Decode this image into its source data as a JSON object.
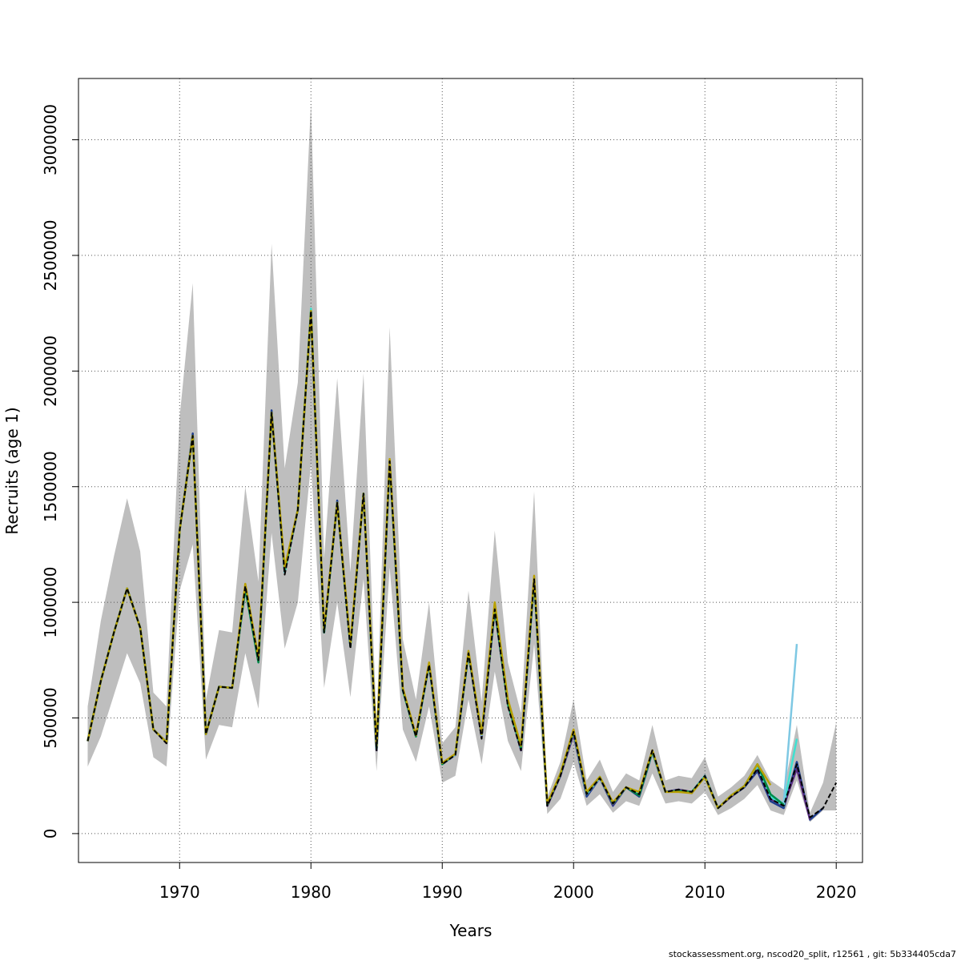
{
  "chart_data": {
    "type": "line",
    "xlabel": "Years",
    "ylabel": "Recruits (age 1)",
    "xlim": [
      1962.3,
      2022.0
    ],
    "ylim": [
      -125000,
      3265000
    ],
    "x_ticks": [
      1970,
      1980,
      1990,
      2000,
      2010,
      2020
    ],
    "y_ticks": [
      0,
      500000,
      1000000,
      1500000,
      2000000,
      2500000,
      3000000
    ],
    "grid": true,
    "colors": {
      "band": "#bebebe",
      "base": "#000000",
      "retro": [
        "#1f3e8e",
        "#5a2d82",
        "#40e0d0",
        "#7ec8e3",
        "#008b45",
        "#b8a000",
        "#2aa198"
      ]
    },
    "band": {
      "x": [
        1963,
        1964,
        1965,
        1966,
        1967,
        1968,
        1969,
        1970,
        1971,
        1972,
        1973,
        1974,
        1975,
        1976,
        1977,
        1978,
        1979,
        1980,
        1981,
        1982,
        1983,
        1984,
        1985,
        1986,
        1987,
        1988,
        1989,
        1990,
        1991,
        1992,
        1993,
        1994,
        1995,
        1996,
        1997,
        1998,
        1999,
        2000,
        2001,
        2002,
        2003,
        2004,
        2005,
        2006,
        2007,
        2008,
        2009,
        2010,
        2011,
        2012,
        2013,
        2014,
        2015,
        2016,
        2017,
        2018,
        2019,
        2020
      ],
      "lower": [
        290000,
        420000,
        600000,
        780000,
        650000,
        330000,
        290000,
        1050000,
        1250000,
        320000,
        470000,
        460000,
        780000,
        540000,
        1300000,
        800000,
        1000000,
        1600000,
        630000,
        1000000,
        590000,
        1100000,
        270000,
        1150000,
        450000,
        310000,
        550000,
        220000,
        250000,
        580000,
        300000,
        700000,
        400000,
        270000,
        820000,
        85000,
        150000,
        310000,
        120000,
        170000,
        90000,
        140000,
        120000,
        260000,
        130000,
        140000,
        130000,
        180000,
        80000,
        110000,
        150000,
        210000,
        100000,
        80000,
        230000,
        50000,
        100000,
        100000
      ],
      "upper": [
        550000,
        920000,
        1200000,
        1450000,
        1220000,
        610000,
        550000,
        1800000,
        2380000,
        580000,
        880000,
        870000,
        1500000,
        1090000,
        2550000,
        1580000,
        1950000,
        3160000,
        1190000,
        1970000,
        1130000,
        1990000,
        470000,
        2190000,
        840000,
        580000,
        1000000,
        390000,
        460000,
        1050000,
        570000,
        1310000,
        740000,
        520000,
        1480000,
        160000,
        310000,
        580000,
        230000,
        320000,
        180000,
        260000,
        230000,
        470000,
        230000,
        250000,
        240000,
        330000,
        160000,
        200000,
        250000,
        340000,
        230000,
        190000,
        470000,
        90000,
        220000,
        480000
      ]
    },
    "series": [
      {
        "role": "base",
        "x": [
          1963,
          1964,
          1965,
          1966,
          1967,
          1968,
          1969,
          1970,
          1971,
          1972,
          1973,
          1974,
          1975,
          1976,
          1977,
          1978,
          1979,
          1980,
          1981,
          1982,
          1983,
          1984,
          1985,
          1986,
          1987,
          1988,
          1989,
          1990,
          1991,
          1992,
          1993,
          1994,
          1995,
          1996,
          1997,
          1998,
          1999,
          2000,
          2001,
          2002,
          2003,
          2004,
          2005,
          2006,
          2007,
          2008,
          2009,
          2010,
          2011,
          2012,
          2013,
          2014,
          2015,
          2016,
          2017,
          2018,
          2019,
          2020
        ],
        "values": [
          400000,
          660000,
          870000,
          1060000,
          890000,
          450000,
          390000,
          1310000,
          1720000,
          430000,
          635000,
          630000,
          1070000,
          750000,
          1820000,
          1120000,
          1400000,
          2260000,
          870000,
          1430000,
          800000,
          1470000,
          360000,
          1610000,
          620000,
          420000,
          730000,
          300000,
          340000,
          780000,
          410000,
          970000,
          550000,
          360000,
          1100000,
          120000,
          250000,
          440000,
          170000,
          240000,
          130000,
          200000,
          170000,
          360000,
          180000,
          190000,
          180000,
          250000,
          110000,
          160000,
          200000,
          280000,
          150000,
          120000,
          300000,
          70000,
          110000,
          220000
        ]
      },
      {
        "role": "retro",
        "x": [
          1963,
          1964,
          1965,
          1966,
          1967,
          1968,
          1969,
          1970,
          1971,
          1972,
          1973,
          1974,
          1975,
          1976,
          1977,
          1978,
          1979,
          1980,
          1981,
          1982,
          1983,
          1984,
          1985,
          1986,
          1987,
          1988,
          1989,
          1990,
          1991,
          1992,
          1993,
          1994,
          1995,
          1996,
          1997,
          1998,
          1999,
          2000,
          2001,
          2002,
          2003,
          2004,
          2005,
          2006,
          2007,
          2008,
          2009,
          2010,
          2011,
          2012,
          2013,
          2014,
          2015,
          2016,
          2017,
          2018,
          2019
        ],
        "values": [
          400000,
          660000,
          870000,
          1060000,
          890000,
          450000,
          395000,
          1310000,
          1730000,
          430000,
          635000,
          630000,
          1060000,
          740000,
          1830000,
          1130000,
          1400000,
          2250000,
          870000,
          1440000,
          810000,
          1470000,
          360000,
          1610000,
          620000,
          420000,
          730000,
          300000,
          340000,
          780000,
          420000,
          970000,
          560000,
          360000,
          1100000,
          120000,
          250000,
          430000,
          160000,
          240000,
          120000,
          200000,
          160000,
          350000,
          180000,
          190000,
          175000,
          250000,
          110000,
          160000,
          200000,
          270000,
          140000,
          110000,
          310000,
          60000,
          110000
        ]
      },
      {
        "role": "retro",
        "x": [
          1963,
          1964,
          1965,
          1966,
          1967,
          1968,
          1969,
          1970,
          1971,
          1972,
          1973,
          1974,
          1975,
          1976,
          1977,
          1978,
          1979,
          1980,
          1981,
          1982,
          1983,
          1984,
          1985,
          1986,
          1987,
          1988,
          1989,
          1990,
          1991,
          1992,
          1993,
          1994,
          1995,
          1996,
          1997,
          1998,
          1999,
          2000,
          2001,
          2002,
          2003,
          2004,
          2005,
          2006,
          2007,
          2008,
          2009,
          2010,
          2011,
          2012,
          2013,
          2014,
          2015,
          2016,
          2017,
          2018
        ],
        "values": [
          400000,
          660000,
          870000,
          1060000,
          890000,
          450000,
          395000,
          1310000,
          1720000,
          430000,
          635000,
          630000,
          1060000,
          750000,
          1820000,
          1130000,
          1400000,
          2260000,
          870000,
          1430000,
          810000,
          1470000,
          360000,
          1610000,
          620000,
          420000,
          730000,
          300000,
          340000,
          780000,
          420000,
          970000,
          560000,
          360000,
          1100000,
          120000,
          250000,
          430000,
          170000,
          240000,
          125000,
          200000,
          170000,
          350000,
          180000,
          190000,
          180000,
          250000,
          110000,
          160000,
          205000,
          280000,
          150000,
          120000,
          280000,
          60000
        ]
      },
      {
        "role": "retro",
        "x": [
          1963,
          1964,
          1965,
          1966,
          1967,
          1968,
          1969,
          1970,
          1971,
          1972,
          1973,
          1974,
          1975,
          1976,
          1977,
          1978,
          1979,
          1980,
          1981,
          1982,
          1983,
          1984,
          1985,
          1986,
          1987,
          1988,
          1989,
          1990,
          1991,
          1992,
          1993,
          1994,
          1995,
          1996,
          1997,
          1998,
          1999,
          2000,
          2001,
          2002,
          2003,
          2004,
          2005,
          2006,
          2007,
          2008,
          2009,
          2010,
          2011,
          2012,
          2013,
          2014,
          2015,
          2016,
          2017
        ],
        "values": [
          400000,
          660000,
          870000,
          1060000,
          890000,
          450000,
          395000,
          1310000,
          1720000,
          430000,
          635000,
          630000,
          1070000,
          750000,
          1820000,
          1130000,
          1400000,
          2270000,
          870000,
          1430000,
          810000,
          1470000,
          370000,
          1610000,
          620000,
          420000,
          730000,
          300000,
          345000,
          780000,
          430000,
          980000,
          560000,
          370000,
          1100000,
          125000,
          260000,
          440000,
          170000,
          245000,
          130000,
          200000,
          175000,
          355000,
          180000,
          185000,
          180000,
          250000,
          110000,
          165000,
          205000,
          290000,
          160000,
          120000,
          410000
        ]
      },
      {
        "role": "retro",
        "x": [
          1963,
          1964,
          1965,
          1966,
          1967,
          1968,
          1969,
          1970,
          1971,
          1972,
          1973,
          1974,
          1975,
          1976,
          1977,
          1978,
          1979,
          1980,
          1981,
          1982,
          1983,
          1984,
          1985,
          1986,
          1987,
          1988,
          1989,
          1990,
          1991,
          1992,
          1993,
          1994,
          1995,
          1996,
          1997,
          1998,
          1999,
          2000,
          2001,
          2002,
          2003,
          2004,
          2005,
          2006,
          2007,
          2008,
          2009,
          2010,
          2011,
          2012,
          2013,
          2014,
          2015,
          2016,
          2017
        ],
        "values": [
          400000,
          660000,
          870000,
          1060000,
          890000,
          450000,
          395000,
          1310000,
          1720000,
          430000,
          635000,
          630000,
          1060000,
          740000,
          1820000,
          1140000,
          1400000,
          2260000,
          870000,
          1430000,
          810000,
          1470000,
          365000,
          1610000,
          620000,
          420000,
          730000,
          300000,
          340000,
          780000,
          425000,
          975000,
          560000,
          365000,
          1100000,
          125000,
          255000,
          440000,
          170000,
          240000,
          130000,
          200000,
          170000,
          350000,
          180000,
          185000,
          180000,
          245000,
          110000,
          165000,
          205000,
          295000,
          170000,
          130000,
          820000
        ]
      },
      {
        "role": "retro",
        "x": [
          1963,
          1964,
          1965,
          1966,
          1967,
          1968,
          1969,
          1970,
          1971,
          1972,
          1973,
          1974,
          1975,
          1976,
          1977,
          1978,
          1979,
          1980,
          1981,
          1982,
          1983,
          1984,
          1985,
          1986,
          1987,
          1988,
          1989,
          1990,
          1991,
          1992,
          1993,
          1994,
          1995,
          1996,
          1997,
          1998,
          1999,
          2000,
          2001,
          2002,
          2003,
          2004,
          2005,
          2006,
          2007,
          2008,
          2009,
          2010,
          2011,
          2012,
          2013,
          2014,
          2015,
          2016
        ],
        "values": [
          400000,
          660000,
          870000,
          1060000,
          890000,
          450000,
          395000,
          1310000,
          1720000,
          430000,
          635000,
          630000,
          1060000,
          740000,
          1820000,
          1140000,
          1400000,
          2260000,
          870000,
          1430000,
          810000,
          1470000,
          370000,
          1610000,
          620000,
          420000,
          735000,
          300000,
          345000,
          780000,
          430000,
          975000,
          560000,
          370000,
          1100000,
          125000,
          255000,
          445000,
          175000,
          245000,
          130000,
          200000,
          165000,
          355000,
          180000,
          185000,
          180000,
          245000,
          110000,
          165000,
          205000,
          300000,
          170000,
          125000
        ]
      },
      {
        "role": "retro",
        "x": [
          1963,
          1964,
          1965,
          1966,
          1967,
          1968,
          1969,
          1970,
          1971,
          1972,
          1973,
          1974,
          1975,
          1976,
          1977,
          1978,
          1979,
          1980,
          1981,
          1982,
          1983,
          1984,
          1985,
          1986,
          1987,
          1988,
          1989,
          1990,
          1991,
          1992,
          1993,
          1994,
          1995,
          1996,
          1997,
          1998,
          1999,
          2000,
          2001,
          2002,
          2003,
          2004,
          2005,
          2006,
          2007,
          2008,
          2009,
          2010,
          2011,
          2012,
          2013,
          2014,
          2015
        ],
        "values": [
          400000,
          660000,
          870000,
          1060000,
          890000,
          450000,
          395000,
          1310000,
          1720000,
          430000,
          635000,
          630000,
          1080000,
          760000,
          1820000,
          1150000,
          1400000,
          2260000,
          880000,
          1430000,
          820000,
          1470000,
          380000,
          1620000,
          630000,
          425000,
          740000,
          305000,
          345000,
          790000,
          430000,
          1000000,
          580000,
          380000,
          1115000,
          130000,
          260000,
          450000,
          180000,
          245000,
          135000,
          200000,
          180000,
          360000,
          180000,
          180000,
          175000,
          245000,
          110000,
          165000,
          205000,
          300000,
          210000
        ]
      }
    ]
  },
  "footer": "stockassessment.org, nscod20_split, r12561 , git: 5b334405cda7"
}
